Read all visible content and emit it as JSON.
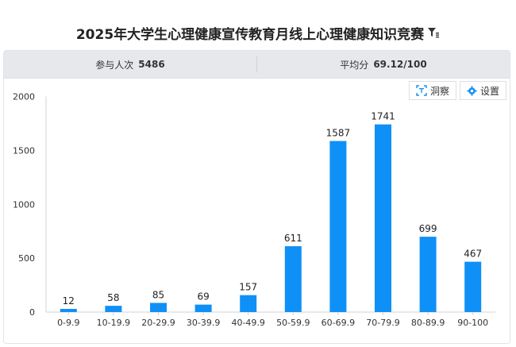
{
  "title": "2025年大学生心理健康宣传教育月线上心理健康知识竞赛",
  "stats": {
    "participants_label": "参与人次",
    "participants_value": "5486",
    "average_label": "平均分",
    "average_value": "69.12/100"
  },
  "toolbar": {
    "insight_label": "洞察",
    "settings_label": "设置"
  },
  "colors": {
    "bar": "#0f90f7",
    "stats_bg": "#e6e8eb"
  },
  "chart_data": {
    "type": "bar",
    "categories": [
      "0-9.9",
      "10-19.9",
      "20-29.9",
      "30-39.9",
      "40-49.9",
      "50-59.9",
      "60-69.9",
      "70-79.9",
      "80-89.9",
      "90-100"
    ],
    "values": [
      12,
      58,
      85,
      69,
      157,
      611,
      1587,
      1741,
      699,
      467
    ],
    "ylim": [
      0,
      2000
    ],
    "yticks": [
      0,
      500,
      1000,
      1500,
      2000
    ],
    "grid": false,
    "title": "",
    "xlabel": "",
    "ylabel": ""
  }
}
